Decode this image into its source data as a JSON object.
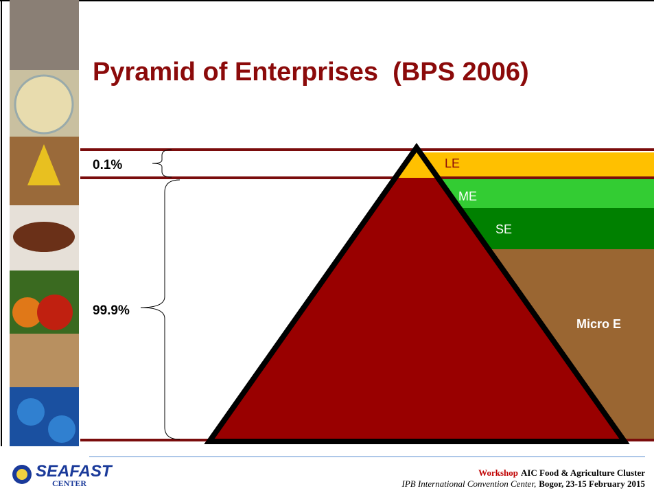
{
  "title": "Pyramid of Enterprises  (BPS 2006)",
  "shares": [
    "0.1%",
    "99.9%"
  ],
  "levels": [
    "LE",
    "ME",
    "SE",
    "Micro E"
  ],
  "logo": {
    "name": "SEAFAST",
    "sub": "CENTER"
  },
  "footer": {
    "line1": {
      "highlight": "Workshop",
      "text": "AIC Food & Agriculture Cluster"
    },
    "line2": {
      "venue": "IPB International Convention Center,",
      "place": "Bogor, 23-15 February 2015"
    }
  }
}
